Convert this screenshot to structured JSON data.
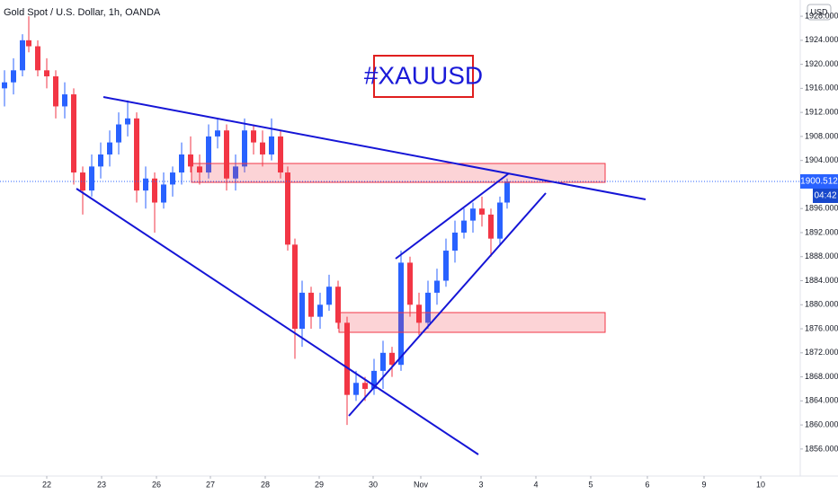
{
  "chart_data": {
    "type": "candlestick",
    "title": "Gold Spot / U.S. Dollar, 1h, OANDA",
    "annotation": "#XAUUSD",
    "currency": "USD",
    "last_price_label": "1900.512",
    "countdown": "04:42",
    "up_color": "#2962ff",
    "down_color": "#f23645",
    "x": [
      0.5,
      1.5,
      2.5,
      3.2,
      4.2,
      5.2,
      6.2,
      7.2,
      8.2,
      9.2,
      10.2,
      11.2,
      12.2,
      13.2,
      14.2,
      15.2,
      16.2,
      17.2,
      18.2,
      19.2,
      20.2,
      21.2,
      22.2,
      23.2,
      24.2,
      25.2,
      26.2,
      27.2,
      28.2,
      29.2,
      30.2,
      31.2,
      32.0,
      32.8,
      33.6,
      34.6,
      35.6,
      36.6,
      37.6,
      38.6,
      39.6,
      40.6,
      41.6,
      42.6,
      43.6,
      44.6,
      45.6,
      46.6,
      47.6,
      48.6,
      49.6,
      50.6,
      51.6,
      52.6,
      53.6,
      54.6,
      55.6,
      56.4
    ],
    "open": [
      1916,
      1917,
      1919,
      1924,
      1923,
      1919,
      1918,
      1913,
      1915,
      1902,
      1899,
      1903,
      1905,
      1907,
      1910,
      1911,
      1899,
      1901,
      1897,
      1900,
      1902,
      1905,
      1903,
      1902,
      1908,
      1909,
      1901,
      1903,
      1909,
      1907,
      1905,
      1908,
      1902,
      1890,
      1876,
      1882,
      1878,
      1880,
      1883,
      1877,
      1865,
      1867,
      1866,
      1869,
      1872,
      1870,
      1887,
      1880,
      1877,
      1882,
      1884,
      1889,
      1892,
      1894,
      1896,
      1895,
      1891,
      1897
    ],
    "high": [
      1919,
      1921,
      1925,
      1928,
      1924,
      1921,
      1919,
      1917,
      1916,
      1903,
      1905,
      1907,
      1909,
      1912,
      1914,
      1912,
      1903,
      1902,
      1902,
      1903,
      1907,
      1908,
      1905,
      1910,
      1911,
      1910,
      1905,
      1911,
      1910,
      1909,
      1911,
      1909,
      1903,
      1891,
      1884,
      1883,
      1882,
      1885,
      1884,
      1878,
      1869,
      1868,
      1871,
      1874,
      1873,
      1889,
      1888,
      1882,
      1884,
      1886,
      1891,
      1894,
      1896,
      1897,
      1898,
      1896,
      1898,
      1901
    ],
    "low": [
      1913,
      1915,
      1918,
      1922,
      1918,
      1916,
      1911,
      1911,
      1900,
      1895,
      1898,
      1901,
      1903,
      1905,
      1908,
      1897,
      1896,
      1892,
      1896,
      1898,
      1900,
      1902,
      1900,
      1901,
      1906,
      1899,
      1899,
      1902,
      1905,
      1903,
      1904,
      1901,
      1889,
      1871,
      1873,
      1876,
      1876,
      1879,
      1876,
      1860,
      1864,
      1864,
      1865,
      1866,
      1868,
      1869,
      1878,
      1875,
      1876,
      1880,
      1883,
      1887,
      1891,
      1892,
      1893,
      1888,
      1890,
      1896
    ],
    "close": [
      1917,
      1919,
      1924,
      1923,
      1919,
      1918,
      1913,
      1915,
      1902,
      1899,
      1903,
      1905,
      1907,
      1910,
      1911,
      1899,
      1901,
      1897,
      1900,
      1902,
      1905,
      1903,
      1902,
      1908,
      1909,
      1901,
      1903,
      1909,
      1907,
      1905,
      1908,
      1902,
      1890,
      1876,
      1882,
      1878,
      1880,
      1883,
      1877,
      1865,
      1867,
      1866,
      1869,
      1872,
      1870,
      1887,
      1880,
      1877,
      1882,
      1884,
      1889,
      1892,
      1894,
      1896,
      1895,
      1891,
      1897,
      1900.512
    ],
    "xlim": [
      0,
      89
    ],
    "xticks": [
      {
        "value": 5.2,
        "label": "22"
      },
      {
        "value": 11.3,
        "label": "23"
      },
      {
        "value": 17.4,
        "label": "26"
      },
      {
        "value": 23.4,
        "label": "27"
      },
      {
        "value": 29.5,
        "label": "28"
      },
      {
        "value": 35.5,
        "label": "29"
      },
      {
        "value": 41.5,
        "label": "30"
      },
      {
        "value": 46.8,
        "label": "Nov"
      },
      {
        "value": 53.5,
        "label": "3"
      },
      {
        "value": 59.6,
        "label": "4"
      },
      {
        "value": 65.7,
        "label": "5"
      },
      {
        "value": 72,
        "label": "6"
      },
      {
        "value": 78.3,
        "label": "9"
      },
      {
        "value": 84.6,
        "label": "10"
      }
    ],
    "ylim": [
      1851.5,
      1930.7
    ],
    "yticks": [
      {
        "value": 1856,
        "label": "1856.000"
      },
      {
        "value": 1860,
        "label": "1860.000"
      },
      {
        "value": 1864,
        "label": "1864.000"
      },
      {
        "value": 1868,
        "label": "1868.000"
      },
      {
        "value": 1872,
        "label": "1872.000"
      },
      {
        "value": 1876,
        "label": "1876.000"
      },
      {
        "value": 1880,
        "label": "1880.000"
      },
      {
        "value": 1884,
        "label": "1884.000"
      },
      {
        "value": 1888,
        "label": "1888.000"
      },
      {
        "value": 1892,
        "label": "1892.000"
      },
      {
        "value": 1896,
        "label": "1896.000"
      },
      {
        "value": 1904,
        "label": "1904.000"
      },
      {
        "value": 1908,
        "label": "1908.000"
      },
      {
        "value": 1912,
        "label": "1912.000"
      },
      {
        "value": 1916,
        "label": "1916.000"
      },
      {
        "value": 1920,
        "label": "1920.000"
      },
      {
        "value": 1924,
        "label": "1924.000"
      },
      {
        "value": 1928,
        "label": "1928.000"
      }
    ]
  }
}
